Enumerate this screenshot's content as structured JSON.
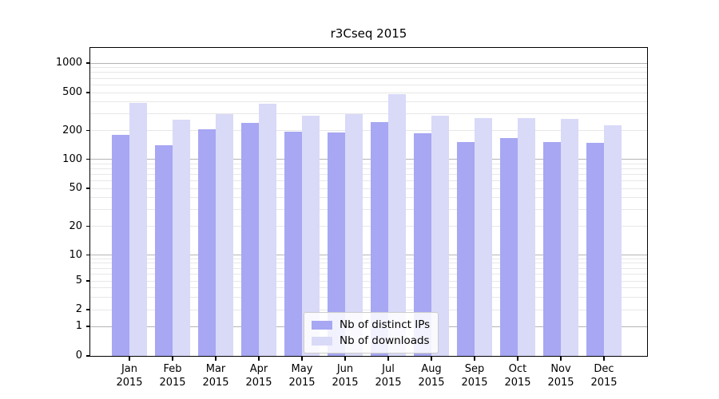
{
  "title": "r3Cseq 2015",
  "chart_data": {
    "type": "bar",
    "title": "r3Cseq 2015",
    "yscale": "symlog",
    "grid": true,
    "ylim": [
      0,
      1400
    ],
    "yticks": [
      0,
      1,
      2,
      5,
      10,
      20,
      50,
      100,
      200,
      500,
      1000
    ],
    "categories": [
      {
        "month": "Jan",
        "year": "2015"
      },
      {
        "month": "Feb",
        "year": "2015"
      },
      {
        "month": "Mar",
        "year": "2015"
      },
      {
        "month": "Apr",
        "year": "2015"
      },
      {
        "month": "May",
        "year": "2015"
      },
      {
        "month": "Jun",
        "year": "2015"
      },
      {
        "month": "Jul",
        "year": "2015"
      },
      {
        "month": "Aug",
        "year": "2015"
      },
      {
        "month": "Sep",
        "year": "2015"
      },
      {
        "month": "Oct",
        "year": "2015"
      },
      {
        "month": "Nov",
        "year": "2015"
      },
      {
        "month": "Dec",
        "year": "2015"
      }
    ],
    "series": [
      {
        "name": "Nb of distinct IPs",
        "color": "#a7a7f3",
        "values": [
          181,
          140,
          206,
          239,
          196,
          191,
          244,
          187,
          150,
          166,
          152,
          148
        ]
      },
      {
        "name": "Nb of downloads",
        "color": "#d9d9f8",
        "values": [
          389,
          260,
          298,
          381,
          284,
          296,
          478,
          285,
          270,
          270,
          265,
          226
        ]
      }
    ],
    "legend_position": "lower center"
  },
  "colors": {
    "grid_major": "#b4b4b4",
    "grid_minor": "#e7e7e7",
    "axis": "#000000"
  }
}
